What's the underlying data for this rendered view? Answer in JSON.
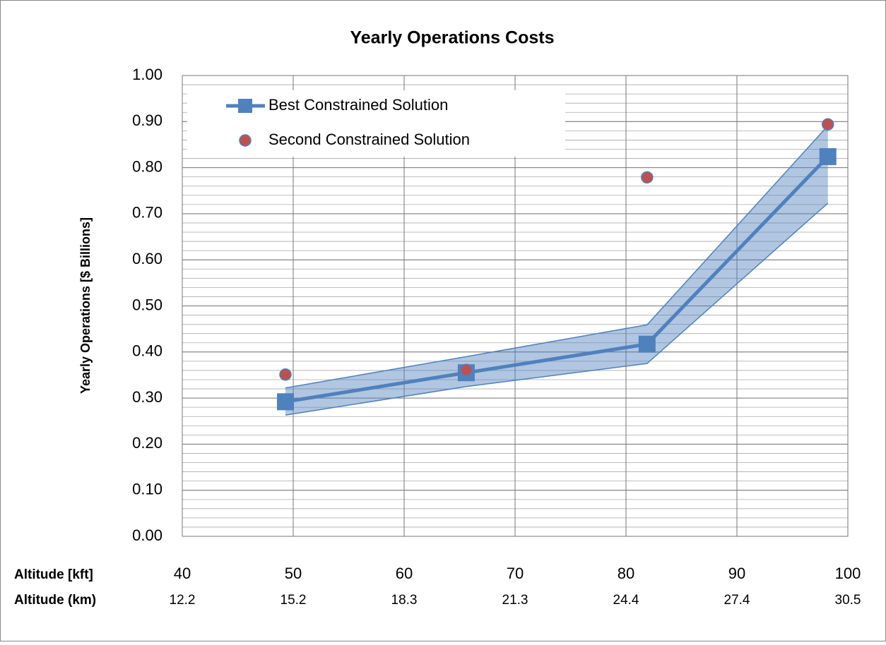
{
  "chart_data": {
    "type": "line",
    "title": "Yearly Operations Costs",
    "y_label": "Yearly Operations [$ Billions]",
    "x_label": "Altitude [kft]",
    "x2_label": "Altitude (km)",
    "xlim": [
      40,
      100
    ],
    "xticks": [
      40,
      50,
      60,
      70,
      80,
      90,
      100
    ],
    "x2ticks": [
      {
        "value": 40,
        "label": "12.2"
      },
      {
        "value": 50,
        "label": "15.2"
      },
      {
        "value": 60,
        "label": "18.3"
      },
      {
        "value": 70,
        "label": "21.3"
      },
      {
        "value": 80,
        "label": "24.4"
      },
      {
        "value": 90,
        "label": "27.4"
      },
      {
        "value": 100,
        "label": "30.5"
      }
    ],
    "ylim": [
      0,
      1
    ],
    "yticks": [
      {
        "value": 0,
        "label": "0.00"
      },
      {
        "value": 0.1,
        "label": "0.10"
      },
      {
        "value": 0.2,
        "label": "0.20"
      },
      {
        "value": 0.3,
        "label": "0.30"
      },
      {
        "value": 0.4,
        "label": "0.40"
      },
      {
        "value": 0.5,
        "label": "0.50"
      },
      {
        "value": 0.6,
        "label": "0.60"
      },
      {
        "value": 0.7,
        "label": "0.70"
      },
      {
        "value": 0.8,
        "label": "0.80"
      },
      {
        "value": 0.9,
        "label": "0.90"
      },
      {
        "value": 1,
        "label": "1.00"
      }
    ],
    "minor_ystep": 0.02,
    "grid": true,
    "legend": "upper left",
    "x": [
      49.3,
      65.6,
      81.9,
      98.2
    ],
    "band": {
      "color": "#4f81bd",
      "upper": [
        0.322,
        0.39,
        0.459,
        0.891
      ],
      "lower": [
        0.263,
        0.325,
        0.375,
        0.723
      ]
    },
    "series": [
      {
        "name": "Best Constrained Solution",
        "color": "#4f81bd",
        "marker": "square",
        "values": [
          0.292,
          0.355,
          0.417,
          0.824
        ]
      },
      {
        "name": "Second Constrained Solution",
        "color": "#c0504d",
        "marker": "circle",
        "values": [
          0.351,
          0.361,
          0.779,
          0.894
        ]
      }
    ]
  }
}
